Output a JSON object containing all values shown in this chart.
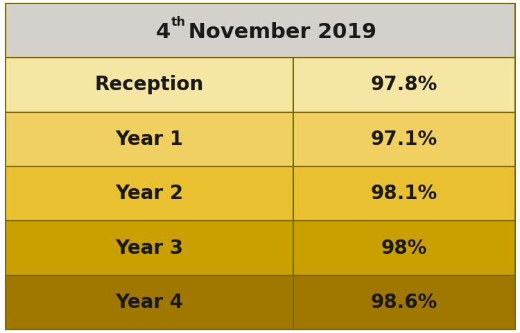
{
  "title_bg": "#d4d0cb",
  "rows": [
    {
      "label": "Reception",
      "value": "97.8%",
      "bg": "#f5e6a3"
    },
    {
      "label": "Year 1",
      "value": "97.1%",
      "bg": "#f0d060"
    },
    {
      "label": "Year 2",
      "value": "98.1%",
      "bg": "#e8c030"
    },
    {
      "label": "Year 3",
      "value": "98%",
      "bg": "#c9a000"
    },
    {
      "label": "Year 4",
      "value": "98.6%",
      "bg": "#a07800"
    }
  ],
  "border_color": "#7a6a00",
  "text_color": "#1a1a1a",
  "title_fontsize": 22,
  "cell_fontsize": 20,
  "fig_width": 7.5,
  "fig_height": 4.8
}
